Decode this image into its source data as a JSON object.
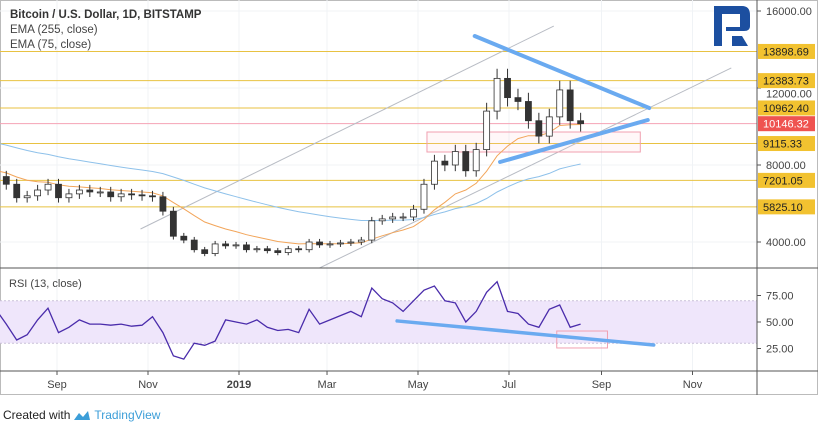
{
  "legend": {
    "title": "Bitcoin / U.S. Dollar, 1D, BITSTAMP",
    "ema1": "EMA (255, close)",
    "ema2": "EMA (75, close)"
  },
  "rsi_label": "RSI (13, close)",
  "footer": {
    "created_with": "Created with",
    "brand": "TradingView"
  },
  "colors": {
    "level": "#e8c242",
    "label_bg": "#f2c230",
    "current": "#ef5350",
    "trend": "#6aaaf0",
    "rsi": "#4a2cab",
    "rsi_band": "#efe6fb",
    "ema_fast": "#f2a55a",
    "ema_slow": "#8ec1ea"
  },
  "chart_data": [
    {
      "type": "candlestick",
      "title": "Bitcoin / U.S. Dollar, 1D, BITSTAMP",
      "x_ticks": [
        {
          "date": "2018-09-01",
          "label": "Sep"
        },
        {
          "date": "2018-11-01",
          "label": "Nov"
        },
        {
          "date": "2019-01-01",
          "label": "2019"
        },
        {
          "date": "2019-03-01",
          "label": "Mar"
        },
        {
          "date": "2019-05-01",
          "label": "May"
        },
        {
          "date": "2019-07-01",
          "label": "Jul"
        },
        {
          "date": "2019-09-01",
          "label": "Sep"
        },
        {
          "date": "2019-11-01",
          "label": "Nov"
        }
      ],
      "y_ticks": [
        {
          "value": 16000,
          "label": "16000.00"
        },
        {
          "value": 12000,
          "label": "12000.00"
        },
        {
          "value": 8000,
          "label": "8000.00"
        },
        {
          "value": 4000,
          "label": "4000.00"
        }
      ],
      "ylim": [
        2700,
        16600
      ],
      "xlim": [
        "2018-07-20",
        "2019-12-10"
      ],
      "start_date": "2018-07-22",
      "step_days": 7,
      "closes": [
        7400,
        7000,
        6300,
        6400,
        6700,
        7000,
        6300,
        6500,
        6700,
        6600,
        6600,
        6350,
        6500,
        6450,
        6400,
        6350,
        5600,
        4300,
        4100,
        3600,
        3400,
        3900,
        3800,
        3850,
        3600,
        3650,
        3550,
        3450,
        3650,
        3600,
        4000,
        3850,
        3900,
        3950,
        4000,
        4100,
        5100,
        5200,
        5300,
        5300,
        5700,
        7000,
        8200,
        8000,
        8700,
        7700,
        8800,
        10800,
        12500,
        11500,
        11300,
        10300,
        9500,
        10500,
        11900,
        10300,
        10146.32
      ],
      "ema_series": [
        {
          "name": "EMA (255, close)",
          "period_weeks": 36
        },
        {
          "name": "EMA (75, close)",
          "period_weeks": 11
        }
      ],
      "levels": [
        {
          "value": 13898.69,
          "label": "13898.69"
        },
        {
          "value": 12383.73,
          "label": "12383.73"
        },
        {
          "value": 10962.4,
          "label": "10962.40"
        },
        {
          "value": 9115.33,
          "label": "9115.33"
        },
        {
          "value": 7201.05,
          "label": "7201.05"
        },
        {
          "value": 5825.1,
          "label": "5825.10"
        }
      ],
      "current_price": {
        "value": 10146.32,
        "label": "10146.32"
      },
      "trendlines": [
        {
          "name": "triangle-upper",
          "from": [
            "2019-06-08",
            14700
          ],
          "to": [
            "2019-10-03",
            10960
          ]
        },
        {
          "name": "triangle-lower",
          "from": [
            "2019-06-25",
            8156
          ],
          "to": [
            "2019-10-02",
            10338
          ]
        }
      ],
      "channel_lines": [
        {
          "name": "channel-upper",
          "from": [
            "2018-10-27",
            4675
          ],
          "to": [
            "2019-07-31",
            15220
          ]
        },
        {
          "name": "channel-lower",
          "from": [
            "2019-02-24",
            2650
          ],
          "to": [
            "2019-11-27",
            13040
          ]
        }
      ],
      "zone": {
        "from": [
          "2019-05-07",
          9714
        ],
        "to": [
          "2019-09-27",
          8675
        ]
      }
    },
    {
      "type": "line",
      "title": "RSI (13, close)",
      "y_ticks": [
        {
          "value": 75,
          "label": "75.00"
        },
        {
          "value": 50,
          "label": "50.00"
        },
        {
          "value": 25,
          "label": "25.00"
        }
      ],
      "band": [
        30,
        70
      ],
      "ylim": [
        3,
        100
      ],
      "start_date": "2018-07-22",
      "step_days": 7,
      "values": [
        62,
        48,
        33,
        38,
        52,
        63,
        40,
        45,
        52,
        48,
        48,
        47,
        48,
        46,
        47,
        55,
        40,
        18,
        15,
        30,
        28,
        32,
        52,
        50,
        48,
        52,
        45,
        42,
        43,
        40,
        62,
        48,
        52,
        56,
        60,
        55,
        82,
        72,
        68,
        60,
        70,
        80,
        84,
        70,
        68,
        50,
        60,
        78,
        88,
        60,
        58,
        48,
        45,
        62,
        66,
        45,
        48
      ],
      "trendline": {
        "from": [
          "2019-04-17",
          51
        ],
        "to": [
          "2019-10-06",
          28.3
        ]
      },
      "zone": {
        "from": [
          "2019-08-02",
          41.5
        ],
        "to": [
          "2019-09-05",
          25.5
        ]
      }
    }
  ]
}
